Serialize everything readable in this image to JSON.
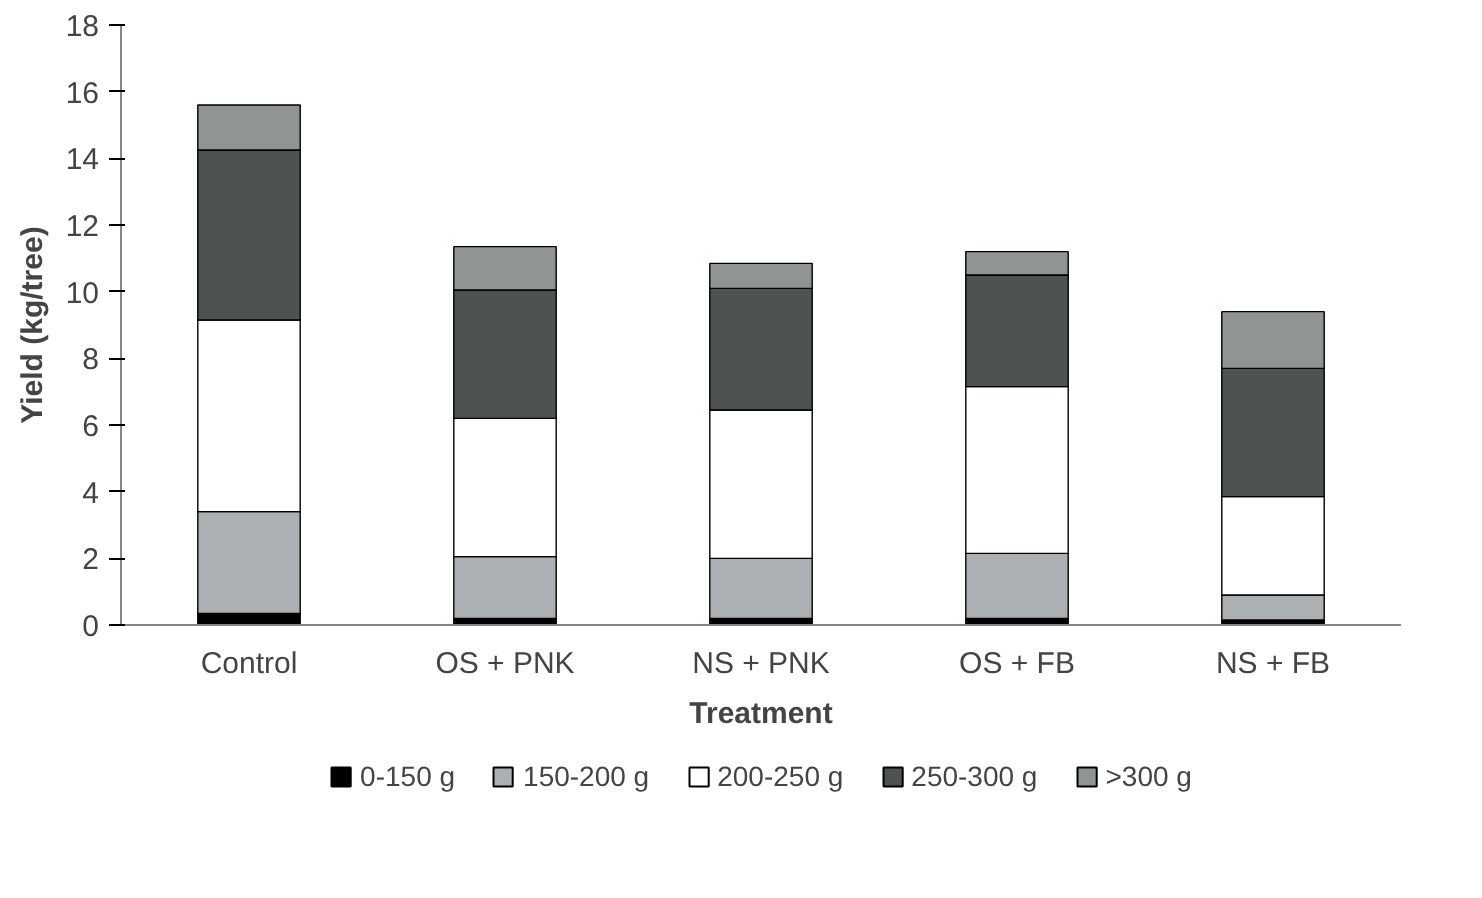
{
  "chart_data": {
    "type": "bar",
    "stacked": true,
    "xlabel": "Treatment",
    "ylabel": "Yield (kg/tree)",
    "categories": [
      "Control",
      "OS + PNK",
      "NS + PNK",
      "OS + FB",
      "NS + FB"
    ],
    "series": [
      {
        "name": "0-150 g",
        "color": "#000000",
        "values": [
          0.35,
          0.2,
          0.2,
          0.2,
          0.15
        ]
      },
      {
        "name": "150-200 g",
        "color": "#adb0b3",
        "values": [
          3.05,
          1.85,
          1.8,
          1.95,
          0.75
        ]
      },
      {
        "name": "200-250 g",
        "color": "#ffffff",
        "values": [
          5.75,
          4.15,
          4.45,
          5.0,
          2.95
        ]
      },
      {
        "name": "250-300 g",
        "color": "#4d5352",
        "values": [
          5.1,
          3.85,
          3.65,
          3.35,
          3.85
        ]
      },
      {
        "name": ">300 g",
        "color": "#8f9494",
        "values": [
          1.35,
          1.3,
          0.75,
          0.7,
          1.7
        ]
      }
    ],
    "ylim": [
      0,
      18
    ],
    "yticks": [
      0,
      2,
      4,
      6,
      8,
      10,
      12,
      14,
      16,
      18
    ],
    "grid": false,
    "legend": "bottom"
  }
}
